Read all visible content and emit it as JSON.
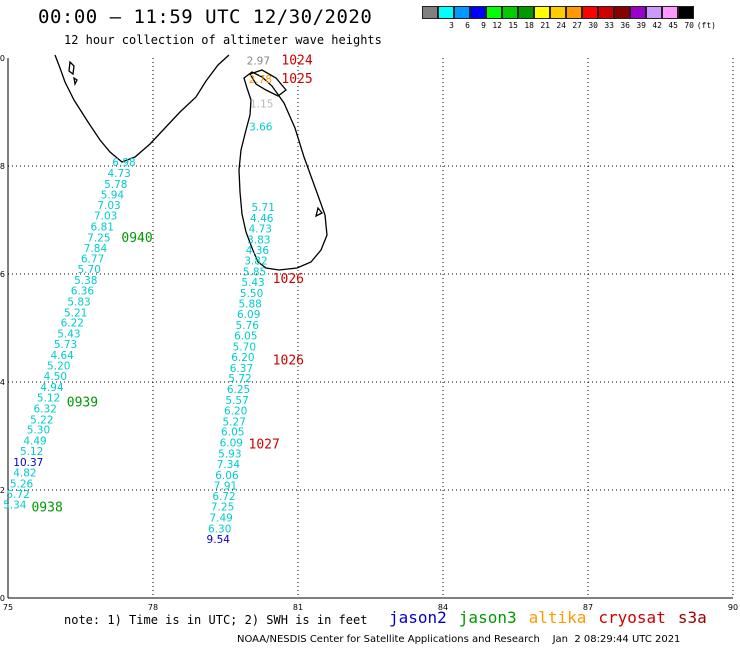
{
  "header": {
    "title": "00:00 – 11:59 UTC 12/30/2020",
    "subtitle": "12 hour collection of altimeter wave heights"
  },
  "legend": {
    "colors": [
      "#808080",
      "#00ffff",
      "#0099ff",
      "#0000ff",
      "#00ff00",
      "#00cc00",
      "#009900",
      "#ffff00",
      "#ffcc00",
      "#ff9900",
      "#ff0000",
      "#cc0000",
      "#880000",
      "#9900cc",
      "#cc99ff",
      "#ff99ff",
      "#000000"
    ],
    "labels": [
      "",
      "3",
      "6",
      "9",
      "12",
      "15",
      "18",
      "21",
      "24",
      "27",
      "30",
      "33",
      "36",
      "39",
      "42",
      "45",
      "70"
    ],
    "unit": "(ft)"
  },
  "axes": {
    "x_ticks": [
      "75",
      "78",
      "81",
      "84",
      "87",
      "90"
    ],
    "y_ticks": [
      "0",
      "2",
      "4",
      "6",
      "8",
      "10"
    ]
  },
  "footer": {
    "note": "note: 1) Time is in UTC; 2) SWH is in feet",
    "satellites": [
      {
        "name": "jason2",
        "color": "#0000cc"
      },
      {
        "name": "jason3",
        "color": "#009900"
      },
      {
        "name": "altika",
        "color": "#ff9900"
      },
      {
        "name": "cryosat",
        "color": "#cc0000"
      },
      {
        "name": "s3a",
        "color": "#990000"
      }
    ],
    "credit": "NOAA/NESDIS Center for Satellite Applications and Research    Jan  2 08:29:44 UTC 2021"
  },
  "observations": [
    {
      "text": "6.98",
      "color": "#00cccc",
      "lon": 77.4,
      "lat": 8.07
    },
    {
      "text": "4.73",
      "color": "#00cccc",
      "lon": 77.3,
      "lat": 7.87
    },
    {
      "text": "5.78",
      "color": "#00cccc",
      "lon": 77.23,
      "lat": 7.67
    },
    {
      "text": "5.94",
      "color": "#00cccc",
      "lon": 77.16,
      "lat": 7.47
    },
    {
      "text": "7.03",
      "color": "#00cccc",
      "lon": 77.09,
      "lat": 7.28
    },
    {
      "text": "7.03",
      "color": "#00cccc",
      "lon": 77.02,
      "lat": 7.08
    },
    {
      "text": "6.81",
      "color": "#00cccc",
      "lon": 76.95,
      "lat": 6.88
    },
    {
      "text": "7.25",
      "color": "#00cccc",
      "lon": 76.88,
      "lat": 6.68
    },
    {
      "text": "7.84",
      "color": "#00cccc",
      "lon": 76.81,
      "lat": 6.48
    },
    {
      "text": "6.77",
      "color": "#00cccc",
      "lon": 76.75,
      "lat": 6.29
    },
    {
      "text": "5.70",
      "color": "#00cccc",
      "lon": 76.68,
      "lat": 6.09
    },
    {
      "text": "5.38",
      "color": "#00cccc",
      "lon": 76.61,
      "lat": 5.89
    },
    {
      "text": "6.36",
      "color": "#00cccc",
      "lon": 76.54,
      "lat": 5.69
    },
    {
      "text": "5.83",
      "color": "#00cccc",
      "lon": 76.47,
      "lat": 5.49
    },
    {
      "text": "5.21",
      "color": "#00cccc",
      "lon": 76.4,
      "lat": 5.29
    },
    {
      "text": "6.22",
      "color": "#00cccc",
      "lon": 76.33,
      "lat": 5.1
    },
    {
      "text": "5.43",
      "color": "#00cccc",
      "lon": 76.26,
      "lat": 4.9
    },
    {
      "text": "5.73",
      "color": "#00cccc",
      "lon": 76.19,
      "lat": 4.7
    },
    {
      "text": "4.64",
      "color": "#00cccc",
      "lon": 76.12,
      "lat": 4.5
    },
    {
      "text": "5.20",
      "color": "#00cccc",
      "lon": 76.05,
      "lat": 4.31
    },
    {
      "text": "4.50",
      "color": "#00cccc",
      "lon": 75.98,
      "lat": 4.11
    },
    {
      "text": "4.94",
      "color": "#00cccc",
      "lon": 75.91,
      "lat": 3.91
    },
    {
      "text": "5.12",
      "color": "#00cccc",
      "lon": 75.84,
      "lat": 3.71
    },
    {
      "text": "6.32",
      "color": "#00cccc",
      "lon": 75.77,
      "lat": 3.51
    },
    {
      "text": "5.22",
      "color": "#00cccc",
      "lon": 75.7,
      "lat": 3.31
    },
    {
      "text": "5.30",
      "color": "#00cccc",
      "lon": 75.63,
      "lat": 3.12
    },
    {
      "text": "4.49",
      "color": "#00cccc",
      "lon": 75.56,
      "lat": 2.92
    },
    {
      "text": "5.12",
      "color": "#00cccc",
      "lon": 75.49,
      "lat": 2.72
    },
    {
      "text": "10.37",
      "color": "#0000cc",
      "lon": 75.42,
      "lat": 2.52
    },
    {
      "text": "4.82",
      "color": "#00cccc",
      "lon": 75.35,
      "lat": 2.32
    },
    {
      "text": "5.26",
      "color": "#00cccc",
      "lon": 75.28,
      "lat": 2.12
    },
    {
      "text": "5.72",
      "color": "#00cccc",
      "lon": 75.21,
      "lat": 1.93
    },
    {
      "text": "5.34",
      "color": "#00cccc",
      "lon": 75.14,
      "lat": 1.73
    },
    {
      "text": "2.97",
      "color": "#888888",
      "lon": 80.18,
      "lat": 9.95
    },
    {
      "text": "2.78",
      "color": "#ff9900",
      "lon": 80.22,
      "lat": 9.61
    },
    {
      "text": "1.15",
      "color": "#bbbbbb",
      "lon": 80.25,
      "lat": 9.16
    },
    {
      "text": "3.66",
      "color": "#00cccc",
      "lon": 80.23,
      "lat": 8.73
    },
    {
      "text": "5.71",
      "color": "#00cccc",
      "lon": 80.28,
      "lat": 7.24
    },
    {
      "text": "4.46",
      "color": "#00cccc",
      "lon": 80.25,
      "lat": 7.04
    },
    {
      "text": "4.73",
      "color": "#00cccc",
      "lon": 80.22,
      "lat": 6.84
    },
    {
      "text": "3.83",
      "color": "#00cccc",
      "lon": 80.19,
      "lat": 6.64
    },
    {
      "text": "4.36",
      "color": "#00cccc",
      "lon": 80.16,
      "lat": 6.44
    },
    {
      "text": "3.82",
      "color": "#00cccc",
      "lon": 80.13,
      "lat": 6.25
    },
    {
      "text": "5.85",
      "color": "#00cccc",
      "lon": 80.1,
      "lat": 6.05
    },
    {
      "text": "5.43",
      "color": "#00cccc",
      "lon": 80.07,
      "lat": 5.85
    },
    {
      "text": "5.50",
      "color": "#00cccc",
      "lon": 80.04,
      "lat": 5.65
    },
    {
      "text": "5.88",
      "color": "#00cccc",
      "lon": 80.01,
      "lat": 5.45
    },
    {
      "text": "6.09",
      "color": "#00cccc",
      "lon": 79.98,
      "lat": 5.26
    },
    {
      "text": "5.76",
      "color": "#00cccc",
      "lon": 79.95,
      "lat": 5.06
    },
    {
      "text": "6.05",
      "color": "#00cccc",
      "lon": 79.92,
      "lat": 4.86
    },
    {
      "text": "5.70",
      "color": "#00cccc",
      "lon": 79.89,
      "lat": 4.66
    },
    {
      "text": "6.20",
      "color": "#00cccc",
      "lon": 79.86,
      "lat": 4.46
    },
    {
      "text": "6.37",
      "color": "#00cccc",
      "lon": 79.83,
      "lat": 4.26
    },
    {
      "text": "5.72",
      "color": "#00cccc",
      "lon": 79.8,
      "lat": 4.07
    },
    {
      "text": "6.25",
      "color": "#00cccc",
      "lon": 79.77,
      "lat": 3.87
    },
    {
      "text": "5.57",
      "color": "#00cccc",
      "lon": 79.74,
      "lat": 3.67
    },
    {
      "text": "6.20",
      "color": "#00cccc",
      "lon": 79.71,
      "lat": 3.47
    },
    {
      "text": "5.27",
      "color": "#00cccc",
      "lon": 79.68,
      "lat": 3.27
    },
    {
      "text": "6.05",
      "color": "#00cccc",
      "lon": 79.65,
      "lat": 3.08
    },
    {
      "text": "6.09",
      "color": "#00cccc",
      "lon": 79.62,
      "lat": 2.88
    },
    {
      "text": "5.93",
      "color": "#00cccc",
      "lon": 79.59,
      "lat": 2.68
    },
    {
      "text": "7.34",
      "color": "#00cccc",
      "lon": 79.56,
      "lat": 2.48
    },
    {
      "text": "6.06",
      "color": "#00cccc",
      "lon": 79.53,
      "lat": 2.28
    },
    {
      "text": "7.91",
      "color": "#00cccc",
      "lon": 79.5,
      "lat": 2.08
    },
    {
      "text": "6.72",
      "color": "#00cccc",
      "lon": 79.47,
      "lat": 1.89
    },
    {
      "text": "7.25",
      "color": "#00cccc",
      "lon": 79.44,
      "lat": 1.69
    },
    {
      "text": "7.49",
      "color": "#00cccc",
      "lon": 79.41,
      "lat": 1.49
    },
    {
      "text": "6.30",
      "color": "#00cccc",
      "lon": 79.38,
      "lat": 1.29
    },
    {
      "text": "9.54",
      "color": "#0000cc",
      "lon": 79.35,
      "lat": 1.09
    }
  ],
  "time_labels": [
    {
      "text": "0940",
      "color": "#009900",
      "lon": 77.67,
      "lat": 6.67
    },
    {
      "text": "0939",
      "color": "#009900",
      "lon": 76.54,
      "lat": 3.62
    },
    {
      "text": "0938",
      "color": "#009900",
      "lon": 75.81,
      "lat": 1.68
    },
    {
      "text": "1024",
      "color": "#cc0000",
      "lon": 80.98,
      "lat": 9.95
    },
    {
      "text": "1025",
      "color": "#cc0000",
      "lon": 80.98,
      "lat": 9.61
    },
    {
      "text": "1026",
      "color": "#cc0000",
      "lon": 80.8,
      "lat": 5.91
    },
    {
      "text": "1026",
      "color": "#cc0000",
      "lon": 80.8,
      "lat": 4.4
    },
    {
      "text": "1027",
      "color": "#cc0000",
      "lon": 80.3,
      "lat": 2.84
    }
  ]
}
